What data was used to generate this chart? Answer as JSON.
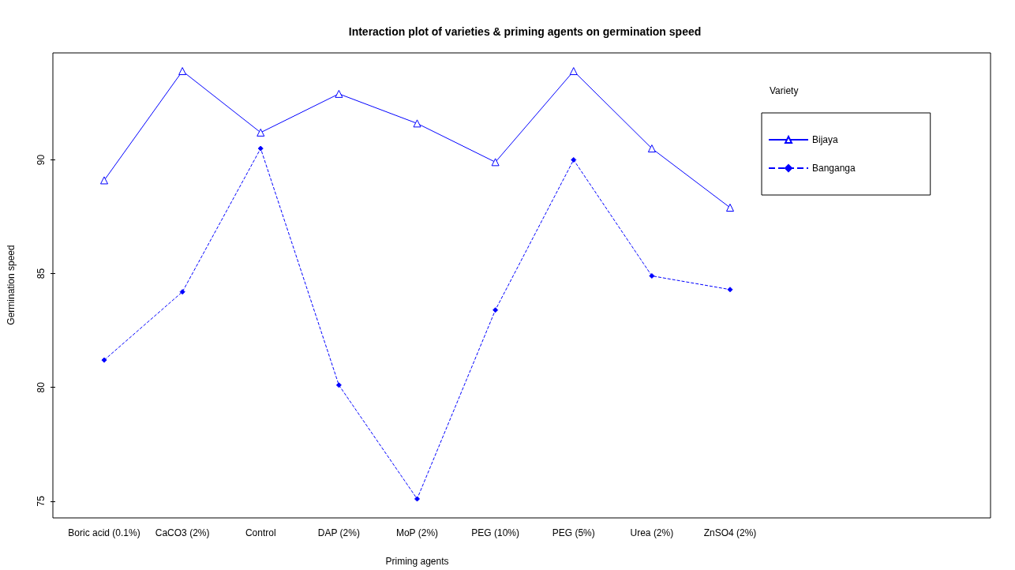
{
  "chart_data": {
    "type": "line",
    "title": "Interaction plot of varieties & priming agents on germination speed",
    "xlabel": "Priming agents",
    "ylabel": "Germination speed",
    "legend_title": "Variety",
    "categories": [
      "Boric acid (0.1%)",
      "CaCO3 (2%)",
      "Control",
      "DAP (2%)",
      "MoP (2%)",
      "PEG (10%)",
      "PEG (5%)",
      "Urea (2%)",
      "ZnSO4 (2%)"
    ],
    "series": [
      {
        "name": "Bijaya",
        "color": "#0000ff",
        "marker": "triangle",
        "line_style": "solid",
        "values": [
          89.1,
          93.9,
          91.2,
          92.9,
          91.6,
          89.9,
          93.9,
          90.5,
          87.9
        ]
      },
      {
        "name": "Banganga",
        "color": "#0000ff",
        "marker": "diamond",
        "line_style": "dashed",
        "values": [
          81.2,
          84.2,
          90.5,
          80.1,
          75.1,
          83.4,
          90.0,
          84.9,
          84.3
        ]
      }
    ],
    "ylim": [
      74.3,
      94.7
    ],
    "yticks": [
      75,
      80,
      85,
      90
    ],
    "grid": false,
    "legend": "top right"
  }
}
